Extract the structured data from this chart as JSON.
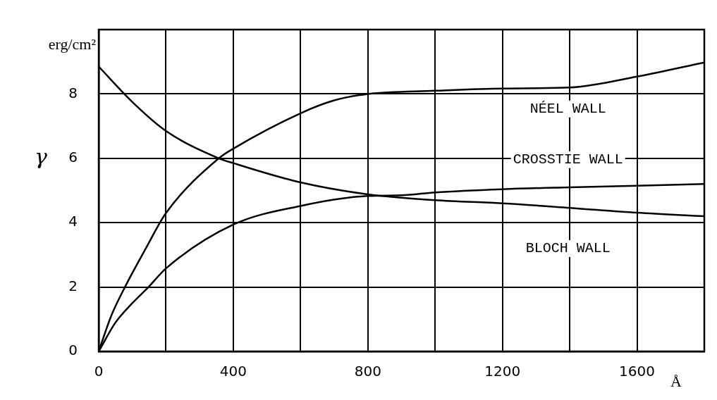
{
  "chart_data": {
    "type": "line",
    "xlabel": "Å",
    "ylabel": "γ",
    "xlim": [
      0,
      1800
    ],
    "xticks": [
      0,
      {
        "value": 200,
        "label": null
      },
      400,
      {
        "value": 600,
        "label": null
      },
      800,
      {
        "value": 1000,
        "label": null
      },
      1200,
      {
        "value": 1400,
        "label": null
      },
      1600,
      {
        "value": 1800,
        "label": null
      }
    ],
    "ylim": [
      0,
      10
    ],
    "yticks": [
      0,
      2,
      4,
      6,
      8,
      {
        "value": 10,
        "label": null
      }
    ],
    "grid": true,
    "legend": false,
    "marker": "none",
    "line_style": "solid",
    "series": [
      {
        "name": "NÉEL WALL",
        "color": "#000000",
        "x": [
          0,
          37,
          78,
          140,
          200,
          357,
          400,
          600,
          700,
          800,
          1000,
          1200,
          1400,
          1600,
          1800
        ],
        "values": [
          0,
          1.1,
          2,
          3.2,
          4.3,
          6.0,
          6.3,
          7.4,
          7.8,
          8.0,
          8.1,
          8.17,
          8.2,
          8.54,
          8.98
        ]
      },
      {
        "name": "CROSSTIE WALL",
        "color": "#000000",
        "x": [
          0,
          50,
          100,
          148,
          200,
          400,
          600,
          800,
          900,
          1000,
          1200,
          1400,
          1600,
          1800
        ],
        "values": [
          0,
          0.9,
          1.5,
          2,
          2.58,
          3.94,
          4.52,
          4.83,
          4.85,
          4.94,
          5.04,
          5.1,
          5.15,
          5.2
        ]
      },
      {
        "name": "BLOCH WALL",
        "color": "#000000",
        "x": [
          0,
          100,
          200,
          357,
          400,
          600,
          800,
          1000,
          1200,
          1400,
          1600,
          1800
        ],
        "values": [
          8.85,
          7.75,
          6.85,
          6.0,
          5.85,
          5.25,
          4.88,
          4.7,
          4.6,
          4.46,
          4.31,
          4.2
        ]
      }
    ],
    "annotations": [
      "erg/cm²"
    ]
  }
}
